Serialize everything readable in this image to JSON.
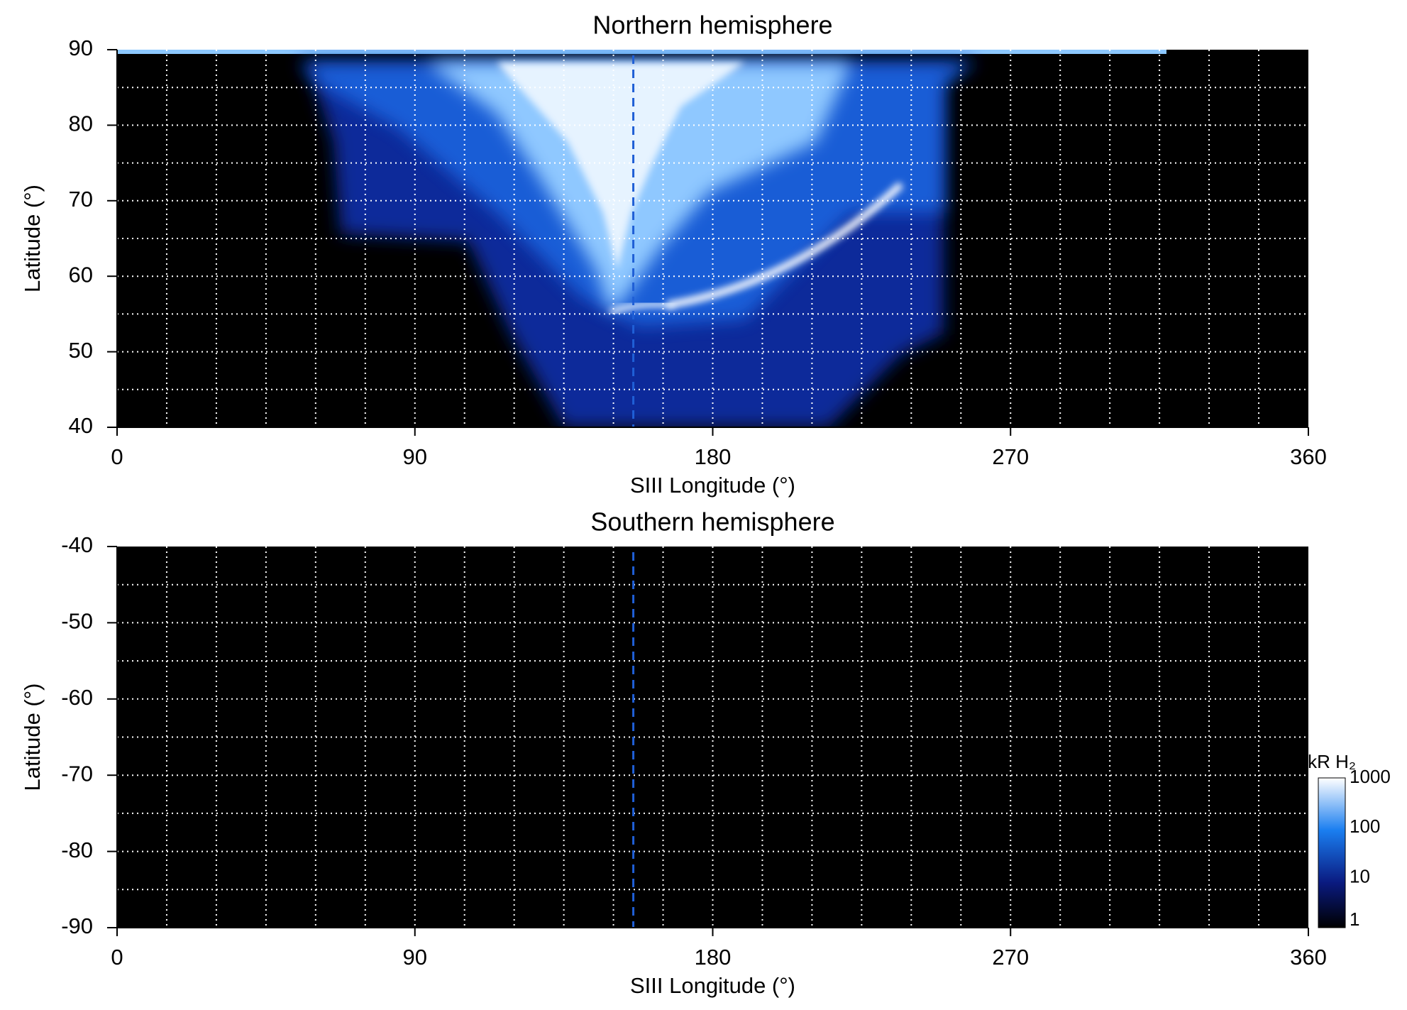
{
  "chart_data": [
    {
      "type": "heatmap",
      "title": "Northern hemisphere",
      "xlabel": "SIII Longitude (°)",
      "ylabel": "Latitude (°)",
      "xlim": [
        0,
        360
      ],
      "ylim": [
        40,
        90
      ],
      "xticks": [
        0,
        90,
        180,
        270,
        360
      ],
      "yticks": [
        40,
        50,
        60,
        70,
        80,
        90
      ],
      "xgrid": [
        15,
        30,
        45,
        60,
        75,
        90,
        105,
        120,
        135,
        150,
        165,
        180,
        195,
        210,
        225,
        240,
        255,
        270,
        285,
        300,
        315,
        330,
        345
      ],
      "ygrid": [
        45,
        50,
        55,
        60,
        65,
        70,
        75,
        80,
        85
      ],
      "vline": 156,
      "vline_color": "#1f5fd6",
      "grid_color": "#ffffff",
      "background": "#000000"
    },
    {
      "type": "heatmap",
      "title": "Southern hemisphere",
      "xlabel": "SIII Longitude (°)",
      "ylabel": "Latitude (°)",
      "xlim": [
        0,
        360
      ],
      "ylim": [
        -90,
        -40
      ],
      "xticks": [
        0,
        90,
        180,
        270,
        360
      ],
      "yticks": [
        -90,
        -80,
        -70,
        -60,
        -50,
        -40
      ],
      "xgrid": [
        15,
        30,
        45,
        60,
        75,
        90,
        105,
        120,
        135,
        150,
        165,
        180,
        195,
        210,
        225,
        240,
        255,
        270,
        285,
        300,
        315,
        330,
        345
      ],
      "ygrid": [
        -85,
        -80,
        -75,
        -70,
        -65,
        -60,
        -55,
        -50,
        -45
      ],
      "vline": 156,
      "vline_color": "#1f5fd6",
      "grid_color": "#ffffff",
      "background": "#000000",
      "colorbar": {
        "label": "kR H₂",
        "lim": [
          1,
          1000
        ],
        "ticks": [
          1,
          10,
          100,
          1000
        ],
        "log": true
      }
    }
  ]
}
